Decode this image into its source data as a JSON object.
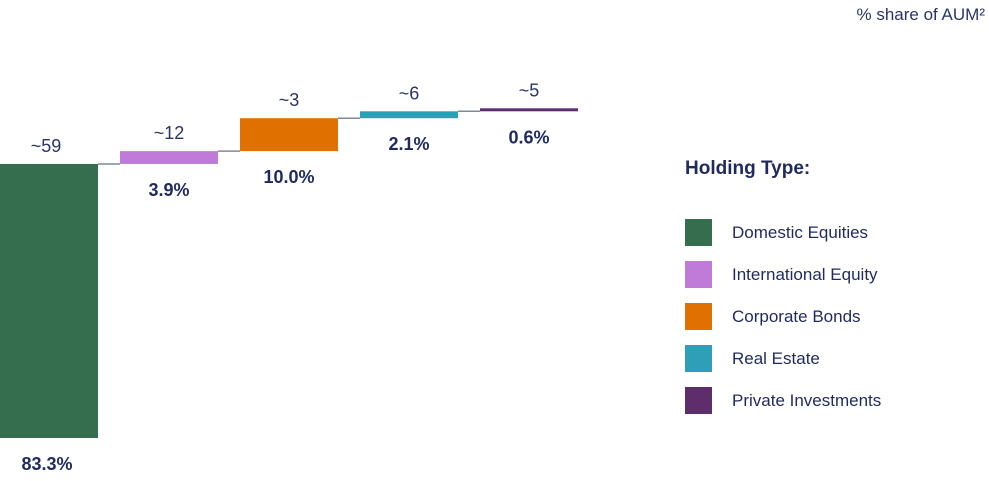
{
  "unit_label": "% share of AUM²",
  "legend": {
    "title": "Holding Type:",
    "items": [
      {
        "label": "Domestic Equities",
        "color": "#356e4f"
      },
      {
        "label": "International Equity",
        "color": "#c07ad7"
      },
      {
        "label": "Corporate Bonds",
        "color": "#e07000"
      },
      {
        "label": "Real Estate",
        "color": "#2e9fb7"
      },
      {
        "label": "Private Investments",
        "color": "#5e2e6c"
      }
    ]
  },
  "chart_data": {
    "type": "bar",
    "subtype": "waterfall",
    "categories": [
      "Domestic Equities",
      "International Equity",
      "Corporate Bonds",
      "Real Estate",
      "Private Investments"
    ],
    "values": [
      83.3,
      3.9,
      10.0,
      2.1,
      0.6
    ],
    "value_labels": [
      "83.3%",
      "3.9%",
      "10.0%",
      "2.1%",
      "0.6%"
    ],
    "top_labels": [
      "~59",
      "~12",
      "~3",
      "~6",
      "~5"
    ],
    "colors": [
      "#356e4f",
      "#c07ad7",
      "#e07000",
      "#2e9fb7",
      "#5e2e6c"
    ],
    "ylim": [
      0,
      100
    ],
    "grid": false,
    "legend_position": "right"
  }
}
